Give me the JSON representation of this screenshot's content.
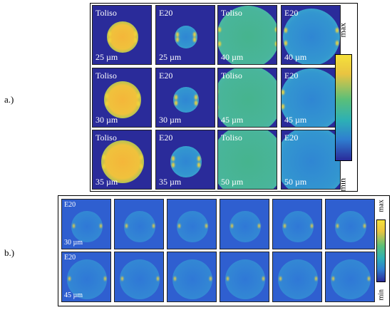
{
  "panel_a": {
    "label": "a.)",
    "rows": [
      [
        {
          "material": "Toliso",
          "size": "25 µm"
        },
        {
          "material": "E20",
          "size": "25 µm"
        },
        {
          "material": "Toliso",
          "size": "40 µm"
        },
        {
          "material": "E20",
          "size": "40 µm"
        }
      ],
      [
        {
          "material": "Toliso",
          "size": "30 µm"
        },
        {
          "material": "E20",
          "size": "30 µm"
        },
        {
          "material": "Toliso",
          "size": "45 µm"
        },
        {
          "material": "E20",
          "size": "45 µm"
        }
      ],
      [
        {
          "material": "Toliso",
          "size": "35 µm"
        },
        {
          "material": "E20",
          "size": "35 µm"
        },
        {
          "material": "Toliso",
          "size": "50 µm"
        },
        {
          "material": "E20",
          "size": "50 µm"
        }
      ]
    ],
    "colorbar": {
      "max": "max",
      "min": "min"
    }
  },
  "panel_b": {
    "label": "b.)",
    "row1": {
      "material": "E20",
      "size": "30 µm"
    },
    "row2": {
      "material": "E20",
      "size": "45 µm"
    },
    "colorbar": {
      "max": "max",
      "min": "min"
    }
  },
  "colors": {
    "background_blue": "#2a2b9a",
    "cyan": "#3fa7c8",
    "green": "#45b58a",
    "yellow": "#f2d33a",
    "orange": "#f4b63a"
  }
}
